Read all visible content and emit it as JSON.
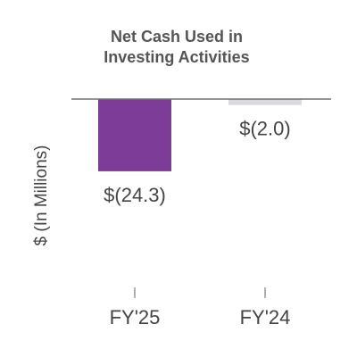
{
  "chart_data": {
    "type": "bar",
    "title_lines": [
      "Net Cash Used in",
      "Investing Activities"
    ],
    "ylabel": "$ (In Millions)",
    "xlabel": "",
    "categories": [
      "FY'25",
      "FY'24"
    ],
    "values": [
      -24.3,
      -2.0
    ],
    "data_labels": [
      "$(24.3)",
      "$(2.0)"
    ],
    "bar_colors": [
      "#7d3c98",
      "#d9d9de"
    ],
    "ylim": [
      -60,
      0
    ],
    "grid": false,
    "legend": "none"
  },
  "colors": {
    "title": "#555555",
    "text": "#444444",
    "axis": "#707070",
    "tick": "#999999"
  }
}
